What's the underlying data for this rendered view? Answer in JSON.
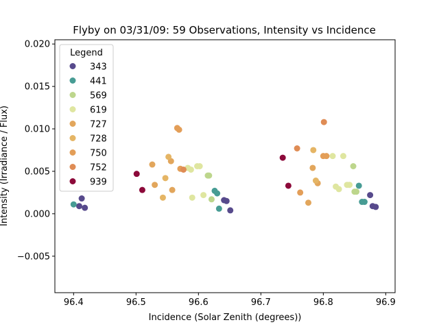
{
  "chart_data": {
    "type": "scatter",
    "title": "Flyby on 03/31/09: 59 Observations, Intensity vs Incidence",
    "xlabel": "Incidence (Solar Zenith (degrees))",
    "ylabel": "Intensity (Irradiance / Flux)",
    "xlim": [
      96.37,
      96.915
    ],
    "ylim": [
      -0.0093,
      0.0205
    ],
    "xticks": [
      96.4,
      96.5,
      96.6,
      96.7,
      96.8,
      96.9
    ],
    "xtick_labels": [
      "96.4",
      "96.5",
      "96.6",
      "96.7",
      "96.8",
      "96.9"
    ],
    "yticks": [
      -0.005,
      0.0,
      0.005,
      0.01,
      0.015,
      0.02
    ],
    "ytick_labels": [
      "−0.005",
      "0.000",
      "0.005",
      "0.010",
      "0.015",
      "0.020"
    ],
    "grid": false,
    "legend": {
      "title": "Legend",
      "placement": "top-left"
    },
    "series": [
      {
        "name": "343",
        "color": "#574a8c",
        "points": [
          [
            96.409,
            0.0009
          ],
          [
            96.413,
            0.0018
          ],
          [
            96.418,
            0.0007
          ],
          [
            96.641,
            0.0016
          ],
          [
            96.645,
            0.0015
          ],
          [
            96.651,
            0.0004
          ],
          [
            96.875,
            0.0022
          ],
          [
            96.879,
            0.0009
          ],
          [
            96.884,
            0.0008
          ]
        ]
      },
      {
        "name": "441",
        "color": "#479c94",
        "points": [
          [
            96.4,
            0.0011
          ],
          [
            96.626,
            0.0027
          ],
          [
            96.63,
            0.0024
          ],
          [
            96.633,
            0.0006
          ],
          [
            96.857,
            0.0033
          ],
          [
            96.862,
            0.0014
          ],
          [
            96.866,
            0.0014
          ]
        ]
      },
      {
        "name": "569",
        "color": "#bdd68c",
        "points": [
          [
            96.615,
            0.0045
          ],
          [
            96.617,
            0.0045
          ],
          [
            96.621,
            0.0017
          ],
          [
            96.848,
            0.0056
          ],
          [
            96.85,
            0.0026
          ],
          [
            96.853,
            0.0026
          ]
        ]
      },
      {
        "name": "619",
        "color": "#dfe6a0",
        "points": [
          [
            96.583,
            0.0054
          ],
          [
            96.588,
            0.0052
          ],
          [
            96.59,
            0.0019
          ],
          [
            96.598,
            0.0056
          ],
          [
            96.602,
            0.0056
          ],
          [
            96.608,
            0.0022
          ],
          [
            96.815,
            0.0068
          ],
          [
            96.82,
            0.0032
          ],
          [
            96.825,
            0.0029
          ],
          [
            96.832,
            0.0068
          ],
          [
            96.838,
            0.0034
          ],
          [
            96.842,
            0.0034
          ]
        ]
      },
      {
        "name": "727",
        "color": "#e2a65c",
        "points": [
          [
            96.526,
            0.0058
          ],
          [
            96.53,
            0.0034
          ],
          [
            96.556,
            0.0062
          ],
          [
            96.558,
            0.0028
          ],
          [
            96.776,
            0.0013
          ],
          [
            96.783,
            0.0054
          ],
          [
            96.791,
            0.0036
          ]
        ]
      },
      {
        "name": "728",
        "color": "#e5b565",
        "points": [
          [
            96.543,
            0.0019
          ],
          [
            96.547,
            0.0042
          ],
          [
            96.552,
            0.0067
          ],
          [
            96.784,
            0.0075
          ],
          [
            96.788,
            0.0039
          ]
        ]
      },
      {
        "name": "750",
        "color": "#e39e58",
        "points": [
          [
            96.566,
            0.0101
          ],
          [
            96.569,
            0.0099
          ],
          [
            96.571,
            0.0053
          ],
          [
            96.763,
            0.0025
          ],
          [
            96.8,
            0.0068
          ],
          [
            96.805,
            0.0068
          ]
        ]
      },
      {
        "name": "752",
        "color": "#df8c55",
        "points": [
          [
            96.576,
            0.0052
          ],
          [
            96.758,
            0.0077
          ],
          [
            96.801,
            0.0108
          ]
        ]
      },
      {
        "name": "939",
        "color": "#8c0a3a",
        "points": [
          [
            96.501,
            0.0047
          ],
          [
            96.51,
            0.0028
          ],
          [
            96.735,
            0.0066
          ],
          [
            96.744,
            0.0033
          ]
        ]
      }
    ]
  }
}
